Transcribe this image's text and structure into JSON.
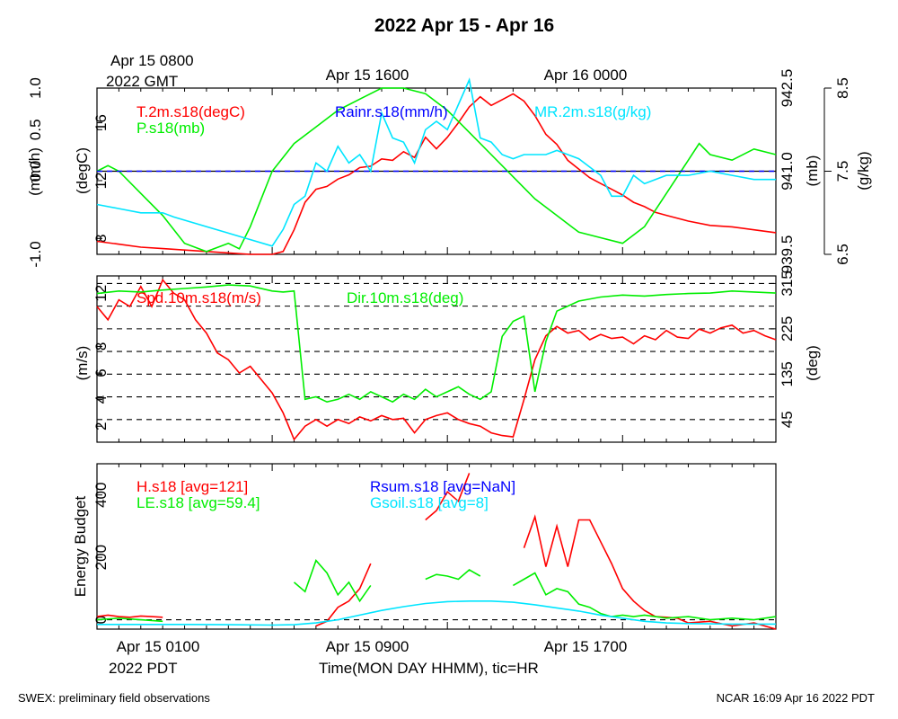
{
  "title": "2022 Apr 15 - Apr 16",
  "top_time": {
    "gmt_line1": "Apr 15 0800",
    "gmt_line2": "2022 GMT",
    "labels": [
      "Apr 15 1600",
      "Apr 16 0000"
    ]
  },
  "bottom_time": {
    "labels": [
      "Apr 15 0100",
      "Apr 15 0900",
      "Apr 15 1700"
    ],
    "pdt": "2022 PDT",
    "xlabel": "Time(MON DAY HHMM), tic=HR"
  },
  "footer": {
    "left": "SWEX: preliminary field observations",
    "right": "NCAR 16:09 Apr 16 2022 PDT"
  },
  "colors": {
    "red": "#ff0000",
    "green": "#00ee00",
    "blue": "#0000ff",
    "cyan": "#00e5ff",
    "black": "#000000"
  },
  "chart_data": [
    {
      "type": "line",
      "panel": "top",
      "x_hours_pdt": [
        0,
        31
      ],
      "axes": {
        "rain": {
          "label": "(mm/h)",
          "ticks": [
            "1.0",
            "0.5",
            "0.0",
            "-1.0"
          ],
          "ylim": [
            -1.0,
            1.0
          ]
        },
        "temp": {
          "label": "(degC)",
          "ticks": [
            "16",
            "12",
            "8"
          ],
          "ylim": [
            6.9,
            18.4
          ]
        },
        "pres": {
          "label": "(mb)",
          "ticks": [
            "942.5",
            "941.0",
            "939.5"
          ],
          "ylim": [
            939.5,
            942.5
          ]
        },
        "mr": {
          "label": "(g/kg)",
          "ticks": [
            "8.5",
            "7.5",
            "6.5"
          ],
          "ylim": [
            6.5,
            8.5
          ]
        }
      },
      "legend": [
        "T.2m.s18(degC)",
        "P.s18(mb)",
        "Rainr.s18(mm/h)",
        "MR.2m.s18(g/kg)"
      ],
      "series": [
        {
          "name": "T.2m.s18(degC)",
          "axis": "temp",
          "color": "red",
          "x": [
            0,
            1,
            2,
            3,
            4,
            5,
            6,
            7,
            8,
            8.5,
            9,
            9.5,
            10,
            10.5,
            11,
            11.5,
            12,
            12.5,
            13,
            13.5,
            14,
            14.5,
            15,
            15.5,
            16,
            16.5,
            17,
            17.5,
            18,
            18.5,
            19,
            19.5,
            20,
            20.5,
            21,
            21.5,
            22,
            22.5,
            23,
            23.5,
            24,
            24.5,
            25,
            25.5,
            26,
            27,
            28,
            29,
            30,
            31
          ],
          "y": [
            7.8,
            7.6,
            7.4,
            7.3,
            7.2,
            7.1,
            7.0,
            6.9,
            6.9,
            7.1,
            8.6,
            10.5,
            11.4,
            11.6,
            12.1,
            12.4,
            12.9,
            13.0,
            13.5,
            13.4,
            14.0,
            13.6,
            15.0,
            14.2,
            15.0,
            16.0,
            17.1,
            17.8,
            17.2,
            17.6,
            18.0,
            17.5,
            16.5,
            15.2,
            14.5,
            13.4,
            12.8,
            12.2,
            11.8,
            11.4,
            11.0,
            10.5,
            10.2,
            9.8,
            9.6,
            9.2,
            8.9,
            8.8,
            8.6,
            8.4
          ]
        },
        {
          "name": "P.s18(mb)",
          "axis": "pres",
          "color": "green",
          "x": [
            0,
            0.5,
            1,
            2,
            3,
            4,
            5,
            6,
            6.5,
            7,
            7.5,
            8,
            9,
            10,
            11,
            12,
            13,
            14,
            15,
            16,
            17,
            18,
            19,
            20,
            21,
            22,
            23,
            24,
            25,
            26,
            27,
            27.5,
            28,
            29,
            30,
            31
          ],
          "y": [
            941.0,
            941.1,
            941.0,
            940.6,
            940.2,
            939.7,
            939.55,
            939.7,
            939.6,
            940.0,
            940.5,
            941.0,
            941.5,
            941.8,
            942.1,
            942.3,
            942.5,
            942.5,
            942.4,
            942.1,
            941.7,
            941.3,
            940.9,
            940.5,
            940.2,
            939.9,
            939.8,
            939.7,
            940.0,
            940.6,
            941.2,
            941.5,
            941.3,
            941.2,
            941.4,
            941.3
          ]
        },
        {
          "name": "Rainr.s18(mm/h)",
          "axis": "rain",
          "color": "blue",
          "x": [
            0,
            31
          ],
          "y": [
            0.0,
            0.0
          ]
        },
        {
          "name": "MR.2m.s18(g/kg)",
          "axis": "mr",
          "color": "cyan",
          "x": [
            0,
            1,
            2,
            3,
            3.5,
            8,
            8.5,
            9,
            9.5,
            10,
            10.5,
            11,
            11.5,
            12,
            12.5,
            13,
            13.5,
            14,
            14.5,
            15,
            15.5,
            16,
            16.5,
            17,
            17.5,
            18,
            18.5,
            19,
            19.5,
            20,
            20.5,
            21,
            21.5,
            22,
            22.5,
            23,
            23.5,
            24,
            24.5,
            25,
            26,
            27,
            28,
            29,
            30,
            31
          ],
          "y": [
            7.1,
            7.05,
            7.0,
            7.0,
            6.95,
            6.6,
            6.8,
            7.1,
            7.2,
            7.6,
            7.5,
            7.8,
            7.6,
            7.7,
            7.5,
            8.2,
            7.9,
            7.85,
            7.6,
            8.0,
            8.1,
            8.0,
            8.3,
            8.6,
            7.9,
            7.85,
            7.7,
            7.65,
            7.7,
            7.7,
            7.7,
            7.75,
            7.7,
            7.65,
            7.55,
            7.45,
            7.2,
            7.2,
            7.45,
            7.35,
            7.45,
            7.45,
            7.5,
            7.45,
            7.4,
            7.4
          ]
        }
      ]
    },
    {
      "type": "line",
      "panel": "middle",
      "x_hours_pdt": [
        0,
        31
      ],
      "axes": {
        "spd": {
          "label": "(m/s)",
          "ticks": [
            "12",
            "8",
            "6",
            "4",
            "2"
          ],
          "ylim": [
            0.8,
            13.3
          ]
        },
        "dir": {
          "label": "(deg)",
          "ticks": [
            "315",
            "225",
            "135",
            "45"
          ],
          "ylim": [
            0,
            330
          ]
        }
      },
      "gridlines_deg": [
        45,
        90,
        135,
        180,
        225,
        270,
        315
      ],
      "legend": [
        "Spd.10m.s18(m/s)",
        "Dir.10m.s18(deg)"
      ],
      "series": [
        {
          "name": "Spd.10m.s18(m/s)",
          "axis": "spd",
          "color": "red",
          "x": [
            0,
            0.5,
            1,
            1.5,
            2,
            2.5,
            3,
            3.5,
            4,
            4.5,
            5,
            5.5,
            6,
            6.5,
            7,
            7.5,
            8,
            8.5,
            9,
            9.5,
            10,
            10.5,
            11,
            11.5,
            12,
            12.5,
            13,
            13.5,
            14,
            14.5,
            15,
            15.5,
            16,
            16.5,
            17,
            17.5,
            18,
            18.5,
            19,
            19.5,
            20,
            20.5,
            21,
            21.5,
            22,
            22.5,
            23,
            23.5,
            24,
            24.5,
            25,
            25.5,
            26,
            26.5,
            27,
            27.5,
            28,
            28.5,
            29,
            29.5,
            30,
            30.5,
            31
          ],
          "y": [
            11.0,
            10.0,
            11.5,
            11.0,
            12.5,
            11.0,
            13.0,
            12.0,
            11.5,
            10.0,
            9.0,
            7.5,
            7.0,
            6.0,
            6.5,
            5.5,
            4.5,
            3.0,
            1.0,
            2.0,
            2.5,
            2.0,
            2.5,
            2.2,
            2.7,
            2.4,
            2.8,
            2.5,
            2.6,
            1.5,
            2.5,
            2.8,
            3.0,
            2.5,
            2.2,
            2.0,
            1.5,
            1.3,
            1.2,
            4.0,
            7.0,
            8.8,
            9.5,
            9.0,
            9.2,
            8.5,
            8.9,
            8.6,
            8.7,
            8.2,
            8.8,
            8.5,
            9.2,
            8.7,
            8.6,
            9.3,
            9.0,
            9.4,
            9.6,
            9.0,
            9.2,
            8.8,
            8.5
          ]
        },
        {
          "name": "Dir.10m.s18(deg)",
          "axis": "dir",
          "color": "green",
          "x": [
            0,
            1,
            2,
            3,
            4,
            5,
            6,
            7,
            8,
            8.5,
            9,
            9.5,
            10,
            10.5,
            11,
            11.5,
            12,
            12.5,
            13,
            13.5,
            14,
            14.5,
            15,
            15.5,
            16,
            16.5,
            17,
            17.5,
            18,
            18.5,
            19,
            19.5,
            20,
            20.5,
            21,
            21.5,
            22,
            23,
            24,
            25,
            26,
            27,
            28,
            29,
            30,
            31
          ],
          "y": [
            295,
            300,
            298,
            302,
            305,
            308,
            312,
            310,
            300,
            298,
            300,
            85,
            90,
            80,
            85,
            95,
            85,
            100,
            90,
            80,
            95,
            85,
            105,
            90,
            100,
            110,
            95,
            85,
            100,
            210,
            240,
            250,
            100,
            200,
            260,
            270,
            280,
            288,
            292,
            290,
            293,
            295,
            296,
            300,
            298,
            296
          ]
        }
      ]
    },
    {
      "type": "line",
      "panel": "bottom",
      "x_hours_pdt": [
        0,
        31
      ],
      "axes": {
        "energy": {
          "label": "Energy Budget",
          "ticks": [
            "0",
            "200",
            "400"
          ],
          "ylim": [
            -30,
            500
          ]
        }
      },
      "legend": [
        "H.s18 [avg=121]",
        "LE.s18 [avg=59.4]",
        "Rsum.s18 [avg=NaN]",
        "Gsoil.s18 [avg=8]"
      ],
      "series": [
        {
          "name": "H.s18 [avg=121]",
          "axis": "energy",
          "color": "red",
          "x": [
            0,
            0.5,
            1,
            1.5,
            2,
            2.5,
            3,
            null,
            10,
            10.5,
            11,
            11.5,
            12,
            12.5,
            null,
            15,
            15.5,
            16,
            16.5,
            17,
            null,
            19.5,
            20,
            20.5,
            21,
            21.5,
            22,
            22.5,
            23,
            23.5,
            24,
            24.5,
            25,
            25.5,
            26,
            26.5,
            27,
            28,
            29,
            30,
            31
          ],
          "y": [
            10,
            15,
            10,
            8,
            12,
            10,
            8,
            null,
            -20,
            -5,
            40,
            60,
            100,
            180,
            null,
            320,
            350,
            410,
            380,
            470,
            null,
            230,
            330,
            170,
            300,
            170,
            320,
            320,
            250,
            180,
            100,
            60,
            30,
            10,
            8,
            5,
            -10,
            -5,
            -20,
            -10,
            -30
          ]
        },
        {
          "name": "LE.s18 [avg=59.4]",
          "axis": "energy",
          "color": "green",
          "x": [
            0,
            1,
            2,
            3,
            null,
            9,
            9.5,
            10,
            10.5,
            11,
            11.5,
            12,
            12.5,
            null,
            15,
            15.5,
            16,
            16.5,
            17,
            17.5,
            null,
            19,
            19.5,
            20,
            20.5,
            21,
            21.5,
            22,
            22.5,
            23,
            23.5,
            24,
            24.5,
            25,
            25.5,
            26,
            27,
            28,
            29,
            30,
            31
          ],
          "y": [
            0,
            5,
            0,
            -5,
            null,
            120,
            90,
            190,
            150,
            80,
            120,
            60,
            110,
            null,
            130,
            145,
            140,
            130,
            160,
            140,
            null,
            110,
            130,
            150,
            80,
            100,
            90,
            50,
            40,
            20,
            10,
            15,
            10,
            15,
            10,
            5,
            10,
            0,
            5,
            0,
            10
          ]
        },
        {
          "name": "Rsum.s18 [avg=NaN]",
          "axis": "energy",
          "color": "blue",
          "x": [
            0,
            31
          ],
          "y": [
            0,
            0
          ]
        },
        {
          "name": "Gsoil.s18 [avg=8]",
          "axis": "energy",
          "color": "cyan",
          "x": [
            0,
            2,
            4,
            6,
            8,
            9,
            10,
            11,
            12,
            13,
            14,
            15,
            16,
            17,
            18,
            19,
            20,
            21,
            22,
            23,
            24,
            25,
            26,
            27,
            28,
            29,
            30,
            31
          ],
          "y": [
            -15,
            -15,
            -15,
            -16,
            -17,
            -16,
            -10,
            0,
            15,
            30,
            42,
            52,
            58,
            60,
            60,
            56,
            48,
            38,
            28,
            15,
            5,
            -5,
            -10,
            -12,
            -13,
            -14,
            -14,
            -14
          ]
        }
      ]
    }
  ]
}
